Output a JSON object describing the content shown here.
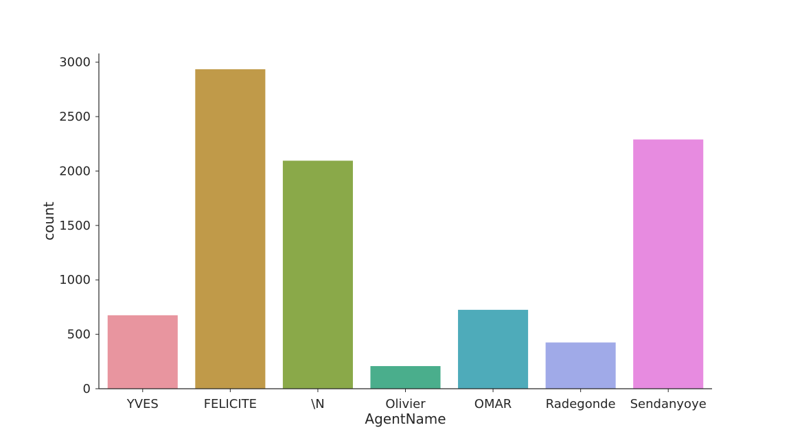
{
  "chart_data": {
    "type": "bar",
    "title": "",
    "xlabel": "AgentName",
    "ylabel": "count",
    "categories": [
      "YVES",
      "FELICITE",
      "\\N",
      "Olivier",
      "OMAR",
      "Radegonde",
      "Sendanyoye"
    ],
    "values": [
      675,
      2935,
      2095,
      208,
      725,
      425,
      2290
    ],
    "colors": [
      "#e8959f",
      "#c09a49",
      "#8aa949",
      "#4aae8c",
      "#4eabba",
      "#a0aae8",
      "#e78be0"
    ],
    "ylim": [
      0,
      3080
    ],
    "yticks": [
      0,
      500,
      1000,
      1500,
      2000,
      2500,
      3000
    ],
    "grid": false,
    "legend": "none"
  }
}
